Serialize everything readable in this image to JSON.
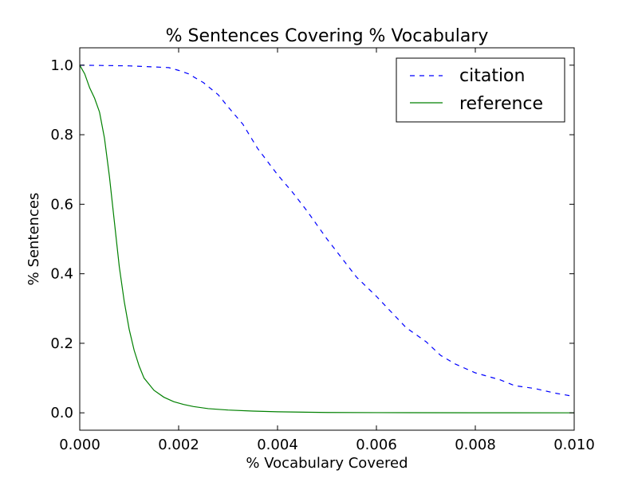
{
  "chart_data": {
    "type": "line",
    "title": "% Sentences Covering % Vocabulary",
    "xlabel": "% Vocabulary Covered",
    "ylabel": "% Sentences",
    "xlim": [
      0.0,
      0.01
    ],
    "ylim": [
      -0.05,
      1.05
    ],
    "xticks": [
      "0.000",
      "0.002",
      "0.004",
      "0.006",
      "0.008",
      "0.010"
    ],
    "yticks": [
      "0.0",
      "0.2",
      "0.4",
      "0.6",
      "0.8",
      "1.0"
    ],
    "grid": false,
    "legend_position": "top-right",
    "series": [
      {
        "name": "citation",
        "color": "#0000ff",
        "style": "dashed",
        "points": [
          [
            0.0,
            1.0
          ],
          [
            0.0005,
            0.999
          ],
          [
            0.001,
            0.998
          ],
          [
            0.0015,
            0.995
          ],
          [
            0.0018,
            0.993
          ],
          [
            0.002,
            0.985
          ],
          [
            0.0022,
            0.975
          ],
          [
            0.0025,
            0.95
          ],
          [
            0.0028,
            0.915
          ],
          [
            0.003,
            0.88
          ],
          [
            0.0033,
            0.83
          ],
          [
            0.0036,
            0.76
          ],
          [
            0.004,
            0.685
          ],
          [
            0.0043,
            0.635
          ],
          [
            0.0046,
            0.58
          ],
          [
            0.005,
            0.5
          ],
          [
            0.0053,
            0.445
          ],
          [
            0.0056,
            0.39
          ],
          [
            0.006,
            0.335
          ],
          [
            0.0063,
            0.29
          ],
          [
            0.0066,
            0.245
          ],
          [
            0.007,
            0.205
          ],
          [
            0.0073,
            0.165
          ],
          [
            0.0076,
            0.14
          ],
          [
            0.008,
            0.115
          ],
          [
            0.0085,
            0.095
          ],
          [
            0.0088,
            0.078
          ],
          [
            0.0092,
            0.07
          ],
          [
            0.0096,
            0.057
          ],
          [
            0.01,
            0.047
          ]
        ]
      },
      {
        "name": "reference",
        "color": "#008000",
        "style": "solid",
        "points": [
          [
            0.0,
            1.0
          ],
          [
            0.0001,
            0.975
          ],
          [
            0.0002,
            0.935
          ],
          [
            0.0003,
            0.905
          ],
          [
            0.0004,
            0.865
          ],
          [
            0.0005,
            0.79
          ],
          [
            0.0006,
            0.68
          ],
          [
            0.0007,
            0.55
          ],
          [
            0.0008,
            0.42
          ],
          [
            0.0009,
            0.32
          ],
          [
            0.001,
            0.24
          ],
          [
            0.0011,
            0.18
          ],
          [
            0.0012,
            0.135
          ],
          [
            0.0013,
            0.1
          ],
          [
            0.0015,
            0.065
          ],
          [
            0.0017,
            0.045
          ],
          [
            0.0019,
            0.032
          ],
          [
            0.0021,
            0.024
          ],
          [
            0.0023,
            0.018
          ],
          [
            0.0026,
            0.012
          ],
          [
            0.003,
            0.008
          ],
          [
            0.0035,
            0.005
          ],
          [
            0.004,
            0.003
          ],
          [
            0.005,
            0.001
          ],
          [
            0.006,
            0.0005
          ],
          [
            0.008,
            0.0002
          ],
          [
            0.01,
            0.0
          ]
        ]
      }
    ]
  }
}
